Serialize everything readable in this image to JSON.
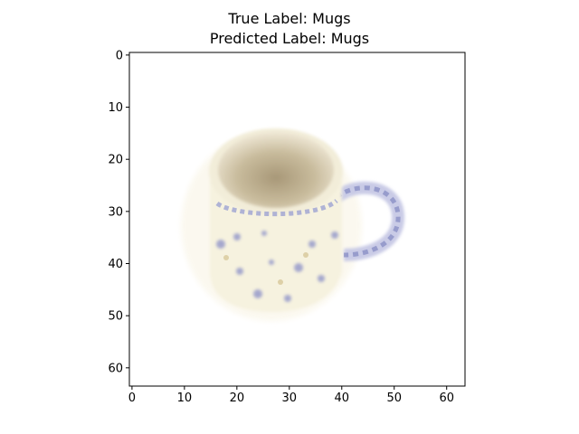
{
  "titles": {
    "line1": "True Label: Mugs",
    "line2": "Predicted Label: Mugs"
  },
  "chart_data": {
    "type": "image",
    "title": "True Label: Mugs\nPredicted Label: Mugs",
    "true_label": "Mugs",
    "predicted_label": "Mugs",
    "image_size": [
      64,
      64
    ],
    "xlim": [
      -0.5,
      63.5
    ],
    "ylim": [
      63.5,
      -0.5
    ],
    "xticks": [
      0,
      10,
      20,
      30,
      40,
      50,
      60
    ],
    "yticks": [
      0,
      10,
      20,
      30,
      40,
      50,
      60
    ],
    "xtick_labels": [
      "0",
      "10",
      "20",
      "30",
      "40",
      "50",
      "60"
    ],
    "ytick_labels": [
      "0",
      "10",
      "20",
      "30",
      "40",
      "50",
      "60"
    ],
    "xlabel": "",
    "ylabel": "",
    "grid": false,
    "content": "cream mug with blue floral pattern and handle"
  },
  "colors": {
    "background": "#ffffff",
    "mug_body": "#f8f4e4",
    "mug_inner": "#b3a68a",
    "pattern": "#8a8fc7",
    "axis": "#000000"
  }
}
